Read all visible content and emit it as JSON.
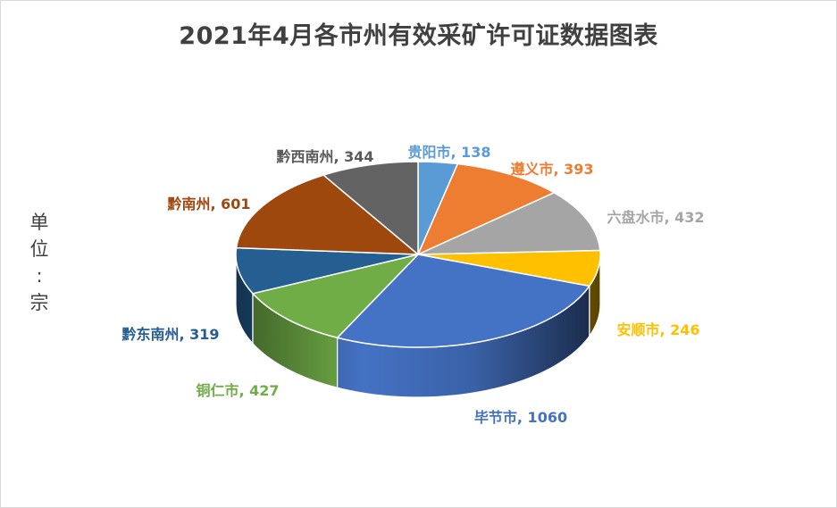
{
  "chart_data": {
    "type": "pie",
    "title": "2021年4月各市州有效采矿许可证数据图表",
    "unit_label": [
      "单",
      "位",
      ":",
      "宗"
    ],
    "slices": [
      {
        "name": "贵阳市",
        "value": 138,
        "color": "#5b9bd5"
      },
      {
        "name": "遵义市",
        "value": 393,
        "color": "#ed7d31"
      },
      {
        "name": "六盘水市",
        "value": 432,
        "color": "#a5a5a5"
      },
      {
        "name": "安顺市",
        "value": 246,
        "color": "#ffc000"
      },
      {
        "name": "毕节市",
        "value": 1060,
        "color": "#4472c4"
      },
      {
        "name": "铜仁市",
        "value": 427,
        "color": "#70ad47"
      },
      {
        "name": "黔东南州",
        "value": 319,
        "color": "#255e91"
      },
      {
        "name": "黔南州",
        "value": 601,
        "color": "#9e480e"
      },
      {
        "name": "黔西南州",
        "value": 344,
        "color": "#636363"
      }
    ],
    "labels": [
      "贵阳市, 138",
      "遵义市, 393",
      "六盘水市, 432",
      "安顺市, 246",
      "毕节市, 1060",
      "铜仁市, 427",
      "黔东南州, 319",
      "黔南州, 601",
      "黔西南州, 344"
    ]
  }
}
